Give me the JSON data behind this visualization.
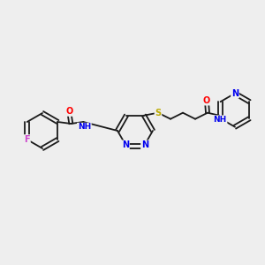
{
  "bg_color": "#eeeeee",
  "bond_color": "#1a1a1a",
  "atom_colors": {
    "O": "#ff0000",
    "N": "#0000ee",
    "S": "#bbaa00",
    "F": "#cc44cc",
    "H": "#1a1a1a",
    "C": "#1a1a1a"
  },
  "figsize": [
    3.0,
    3.0
  ],
  "dpi": 100,
  "lw": 1.3,
  "fs": 7.0,
  "sep": 2.0
}
